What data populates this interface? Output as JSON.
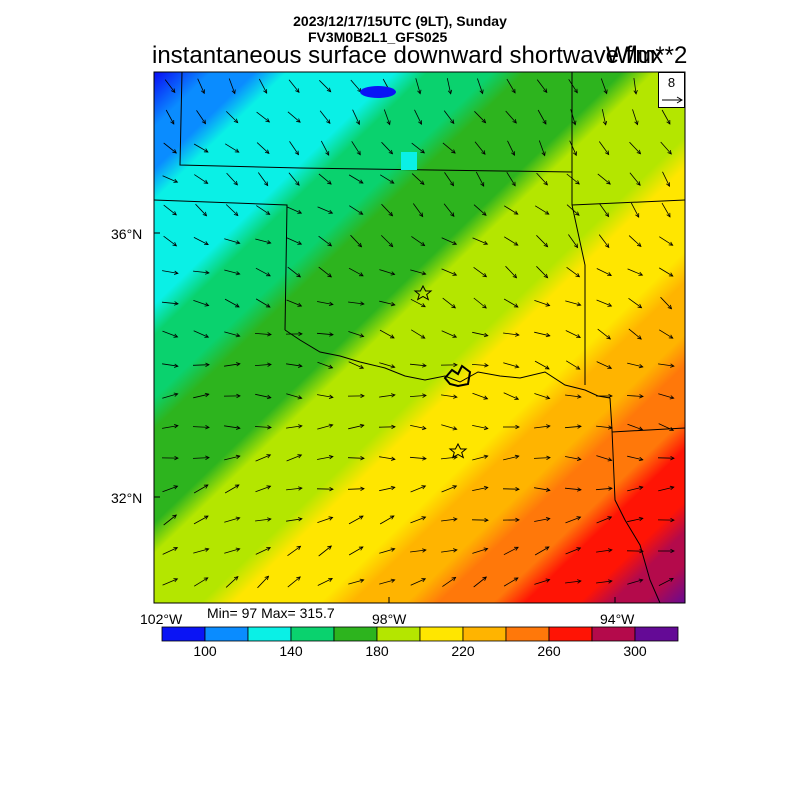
{
  "header": {
    "datetime": "2023/12/17/15UTC (9LT), Sunday",
    "model": "FV3M0B2L1_GFS025",
    "field": "instantaneous surface downward shortwave flux",
    "units": "W/m**2"
  },
  "map": {
    "lat_labels": [
      "36°N",
      "32°N"
    ],
    "lon_labels": [
      "102°W",
      "98°W",
      "94°W"
    ],
    "stats": "Min= 97 Max= 315.7",
    "reference_vector": "8",
    "markers": [
      "star-north",
      "star-south"
    ]
  },
  "colorbar": {
    "colors": [
      "#0a14f5",
      "#0a8cff",
      "#0af0e6",
      "#0ad26e",
      "#2db41e",
      "#b4e600",
      "#ffe600",
      "#ffb400",
      "#ff780a",
      "#ff1405",
      "#b40a4b",
      "#640a96"
    ],
    "tick_labels": [
      "100",
      "140",
      "180",
      "220",
      "260",
      "300"
    ]
  }
}
